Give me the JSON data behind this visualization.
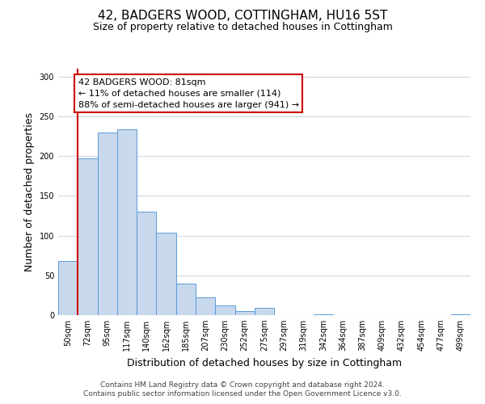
{
  "title": "42, BADGERS WOOD, COTTINGHAM, HU16 5ST",
  "subtitle": "Size of property relative to detached houses in Cottingham",
  "xlabel": "Distribution of detached houses by size in Cottingham",
  "ylabel": "Number of detached properties",
  "bin_labels": [
    "50sqm",
    "72sqm",
    "95sqm",
    "117sqm",
    "140sqm",
    "162sqm",
    "185sqm",
    "207sqm",
    "230sqm",
    "252sqm",
    "275sqm",
    "297sqm",
    "319sqm",
    "342sqm",
    "364sqm",
    "387sqm",
    "409sqm",
    "432sqm",
    "454sqm",
    "477sqm",
    "499sqm"
  ],
  "bar_heights": [
    68,
    197,
    230,
    234,
    130,
    104,
    40,
    22,
    12,
    5,
    9,
    0,
    0,
    1,
    0,
    0,
    0,
    0,
    0,
    0,
    1
  ],
  "bar_color": "#c8d9ed",
  "bar_edge_color": "#5b9bd5",
  "marker_line_color": "#cc0000",
  "annotation_title": "42 BADGERS WOOD: 81sqm",
  "annotation_line1": "← 11% of detached houses are smaller (114)",
  "annotation_line2": "88% of semi-detached houses are larger (941) →",
  "annotation_box_color": "#ffffff",
  "annotation_box_edge": "#cc0000",
  "ylim": [
    0,
    310
  ],
  "yticks": [
    0,
    50,
    100,
    150,
    200,
    250,
    300
  ],
  "footnote1": "Contains HM Land Registry data © Crown copyright and database right 2024.",
  "footnote2": "Contains public sector information licensed under the Open Government Licence v3.0.",
  "bg_color": "#ffffff",
  "grid_color": "#d0d8e8",
  "title_fontsize": 11,
  "subtitle_fontsize": 9,
  "axis_label_fontsize": 9,
  "tick_fontsize": 7,
  "annotation_fontsize": 8,
  "footnote_fontsize": 6.5
}
